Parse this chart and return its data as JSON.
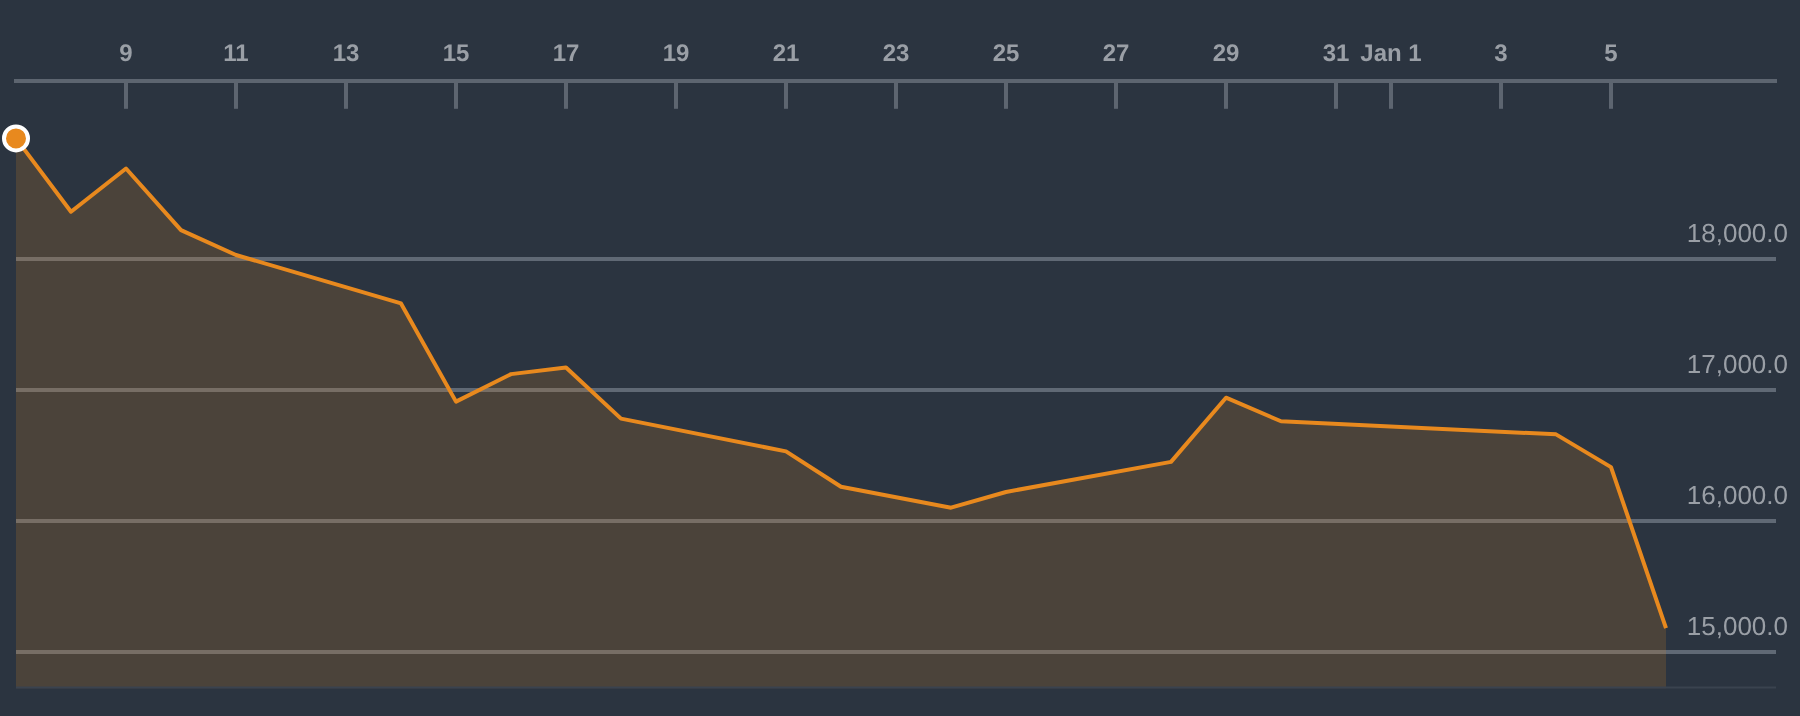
{
  "chart_data": {
    "type": "area",
    "categories": [
      null,
      null,
      "9",
      null,
      "11",
      null,
      "13",
      null,
      "15",
      null,
      "17",
      null,
      "19",
      null,
      "21",
      null,
      "23",
      null,
      "25",
      null,
      "27",
      null,
      "29",
      null,
      "31",
      "Jan 1",
      null,
      "3",
      null,
      "5",
      null,
      null,
      null
    ],
    "series": [
      {
        "color": "#e8891e",
        "values": [
          18920,
          18360,
          18690,
          18220,
          18030,
          null,
          null,
          17660,
          16910,
          17120,
          17170,
          16780,
          null,
          null,
          16530,
          16260,
          null,
          16100,
          16220,
          null,
          null,
          16450,
          16940,
          16760,
          null,
          null,
          null,
          null,
          16660,
          16410,
          15180,
          null,
          null
        ]
      },
      {
        "type": "scatter",
        "color": "#e8891e",
        "marker": "circle",
        "values": [
          18920,
          null,
          null,
          null,
          null,
          null,
          null,
          null,
          null,
          null,
          null,
          null,
          null,
          null,
          null,
          null,
          null,
          null,
          null,
          null,
          null,
          null,
          null,
          null,
          null,
          null,
          null,
          null,
          null,
          null,
          null,
          null,
          null
        ]
      }
    ],
    "ylim": [
      14720,
      19360
    ],
    "yticks": [
      {
        "value": 15000,
        "label": "15,000.0"
      },
      {
        "value": 16000,
        "label": "16,000.0"
      },
      {
        "value": 17000,
        "label": "17,000.0"
      },
      {
        "value": 18000,
        "label": "18,000.0"
      }
    ],
    "grid": "y",
    "legend": false,
    "marker": "none"
  }
}
